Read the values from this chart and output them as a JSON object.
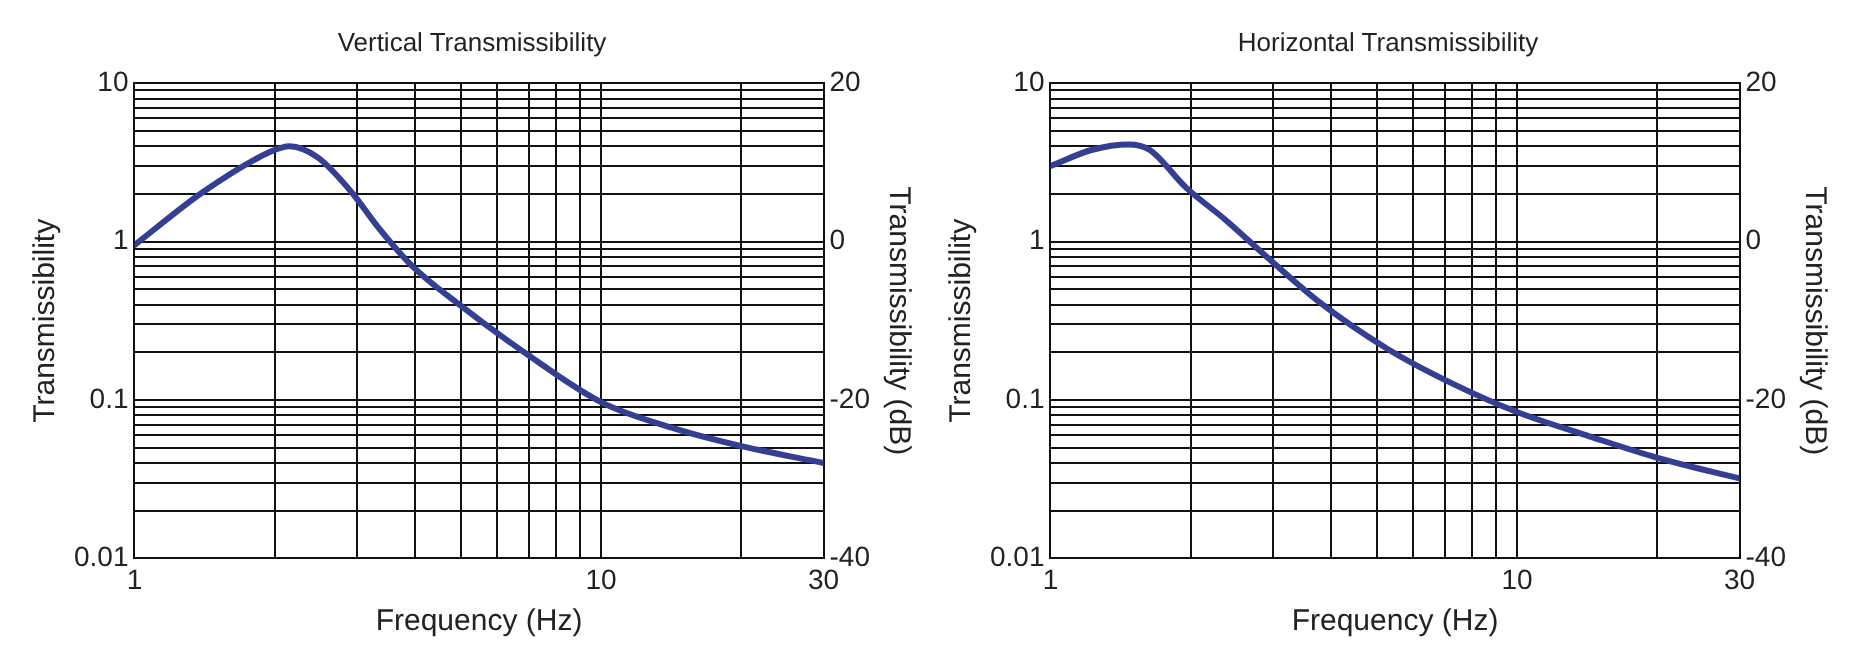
{
  "chart_data": [
    {
      "type": "line",
      "title": "Vertical Transmissibility",
      "xlabel": "Frequency (Hz)",
      "ylabel": "Transmissibility",
      "y2label": "Transmissibility (dB)",
      "log": "xy",
      "grid": true,
      "legend": false,
      "marker": "none",
      "line_style": "solid",
      "xlim": [
        1,
        30
      ],
      "xticks": [
        1,
        {
          "value": 2,
          "label": null
        },
        {
          "value": 3,
          "label": null
        },
        {
          "value": 4,
          "label": null
        },
        {
          "value": 5,
          "label": null
        },
        {
          "value": 6,
          "label": null
        },
        {
          "value": 7,
          "label": null
        },
        {
          "value": 8,
          "label": null
        },
        {
          "value": 9,
          "label": null
        },
        10,
        {
          "value": 20,
          "label": null
        },
        30
      ],
      "ylim": [
        0.01,
        10
      ],
      "yticks": [
        0.01,
        {
          "value": 0.02,
          "label": null
        },
        {
          "value": 0.03,
          "label": null
        },
        {
          "value": 0.04,
          "label": null
        },
        {
          "value": 0.05,
          "label": null
        },
        {
          "value": 0.06,
          "label": null
        },
        {
          "value": 0.07,
          "label": null
        },
        {
          "value": 0.08,
          "label": null
        },
        {
          "value": 0.09,
          "label": null
        },
        0.1,
        {
          "value": 0.2,
          "label": null
        },
        {
          "value": 0.3,
          "label": null
        },
        {
          "value": 0.4,
          "label": null
        },
        {
          "value": 0.5,
          "label": null
        },
        {
          "value": 0.6,
          "label": null
        },
        {
          "value": 0.7,
          "label": null
        },
        {
          "value": 0.8,
          "label": null
        },
        {
          "value": 0.9,
          "label": null
        },
        1,
        {
          "value": 2,
          "label": null
        },
        {
          "value": 3,
          "label": null
        },
        {
          "value": 4,
          "label": null
        },
        {
          "value": 5,
          "label": null
        },
        {
          "value": 6,
          "label": null
        },
        {
          "value": 7,
          "label": null
        },
        {
          "value": 8,
          "label": null
        },
        {
          "value": 9,
          "label": null
        },
        10
      ],
      "y2lim": [
        -40,
        20
      ],
      "y2ticks": [
        -40,
        -20,
        0,
        20
      ],
      "series": [
        {
          "color": "#343f94",
          "x": [
            1,
            1.4,
            1.96,
            2.15,
            2.47,
            2.92,
            3.33,
            3.94,
            4.97,
            6.93,
            10,
            14.4,
            20.1,
            30
          ],
          "values": [
            0.95,
            2.05,
            3.7,
            4.0,
            3.4,
            2.05,
            1.23,
            0.7,
            0.4,
            0.195,
            0.097,
            0.066,
            0.051,
            0.04
          ]
        }
      ]
    },
    {
      "type": "line",
      "title": "Horizontal Transmissibility",
      "xlabel": "Frequency (Hz)",
      "ylabel": "Transmissibility",
      "y2label": "Transmissibility (dB)",
      "log": "xy",
      "grid": true,
      "legend": false,
      "marker": "none",
      "line_style": "solid",
      "xlim": [
        1,
        30
      ],
      "xticks": [
        1,
        {
          "value": 2,
          "label": null
        },
        {
          "value": 3,
          "label": null
        },
        {
          "value": 4,
          "label": null
        },
        {
          "value": 5,
          "label": null
        },
        {
          "value": 6,
          "label": null
        },
        {
          "value": 7,
          "label": null
        },
        {
          "value": 8,
          "label": null
        },
        {
          "value": 9,
          "label": null
        },
        10,
        {
          "value": 20,
          "label": null
        },
        30
      ],
      "ylim": [
        0.01,
        10
      ],
      "yticks": [
        0.01,
        {
          "value": 0.02,
          "label": null
        },
        {
          "value": 0.03,
          "label": null
        },
        {
          "value": 0.04,
          "label": null
        },
        {
          "value": 0.05,
          "label": null
        },
        {
          "value": 0.06,
          "label": null
        },
        {
          "value": 0.07,
          "label": null
        },
        {
          "value": 0.08,
          "label": null
        },
        {
          "value": 0.09,
          "label": null
        },
        0.1,
        {
          "value": 0.2,
          "label": null
        },
        {
          "value": 0.3,
          "label": null
        },
        {
          "value": 0.4,
          "label": null
        },
        {
          "value": 0.5,
          "label": null
        },
        {
          "value": 0.6,
          "label": null
        },
        {
          "value": 0.7,
          "label": null
        },
        {
          "value": 0.8,
          "label": null
        },
        {
          "value": 0.9,
          "label": null
        },
        1,
        {
          "value": 2,
          "label": null
        },
        {
          "value": 3,
          "label": null
        },
        {
          "value": 4,
          "label": null
        },
        {
          "value": 5,
          "label": null
        },
        {
          "value": 6,
          "label": null
        },
        {
          "value": 7,
          "label": null
        },
        {
          "value": 8,
          "label": null
        },
        {
          "value": 9,
          "label": null
        },
        10
      ],
      "y2lim": [
        -40,
        20
      ],
      "y2ticks": [
        -40,
        -20,
        0,
        20
      ],
      "series": [
        {
          "color": "#343f94",
          "x": [
            1,
            1.23,
            1.47,
            1.63,
            1.95,
            2.38,
            2.91,
            3.79,
            5.28,
            7.35,
            10,
            14.3,
            20.1,
            30
          ],
          "values": [
            3.0,
            3.8,
            4.1,
            3.8,
            2.2,
            1.36,
            0.8,
            0.41,
            0.21,
            0.125,
            0.084,
            0.059,
            0.043,
            0.032
          ]
        }
      ]
    }
  ]
}
